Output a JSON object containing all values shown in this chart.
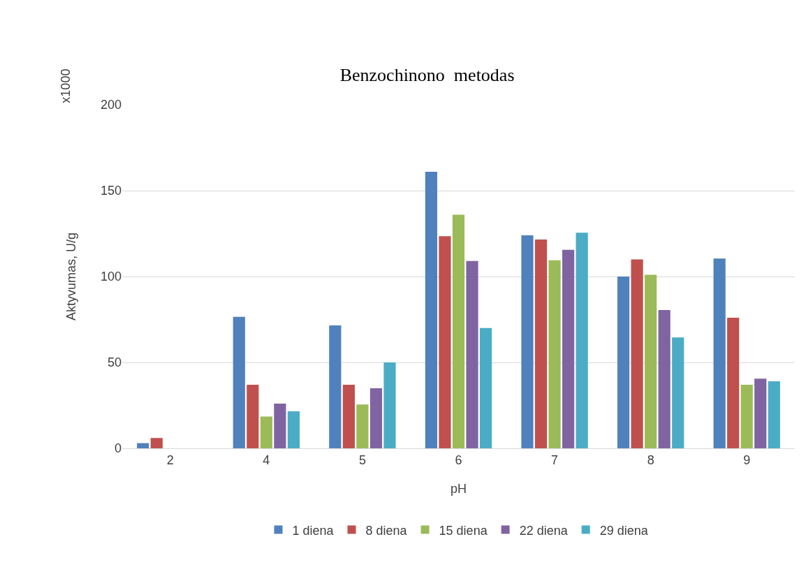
{
  "chart_data": {
    "type": "bar",
    "title": "Benzochinono  metodas",
    "xlabel": "pH",
    "ylabel": "Aktyvumas, U/g",
    "annotations": [
      "x1000"
    ],
    "categories": [
      "2",
      "4",
      "5",
      "6",
      "7",
      "8",
      "9"
    ],
    "series": [
      {
        "name": "1 diena",
        "color": "#4f81bd",
        "values": [
          3,
          76.5,
          71.5,
          161,
          124,
          100,
          110.5
        ]
      },
      {
        "name": "8 diena",
        "color": "#c0504d",
        "values": [
          6,
          37,
          37,
          123.5,
          121.5,
          110,
          76
        ]
      },
      {
        "name": "15 diena",
        "color": "#9bbb59",
        "values": [
          0,
          18.5,
          25.5,
          136,
          109.5,
          101,
          37
        ]
      },
      {
        "name": "22 diena",
        "color": "#8064a2",
        "values": [
          0,
          26,
          35,
          109,
          115.5,
          80.5,
          40.5
        ]
      },
      {
        "name": "29 diena",
        "color": "#4bacc6",
        "values": [
          0,
          21.5,
          50,
          70,
          125.5,
          64.5,
          39
        ]
      }
    ],
    "ylim": [
      0,
      200
    ],
    "yticks": [
      0,
      50,
      100,
      150,
      200
    ],
    "grid": "y",
    "legend": "bottom"
  }
}
